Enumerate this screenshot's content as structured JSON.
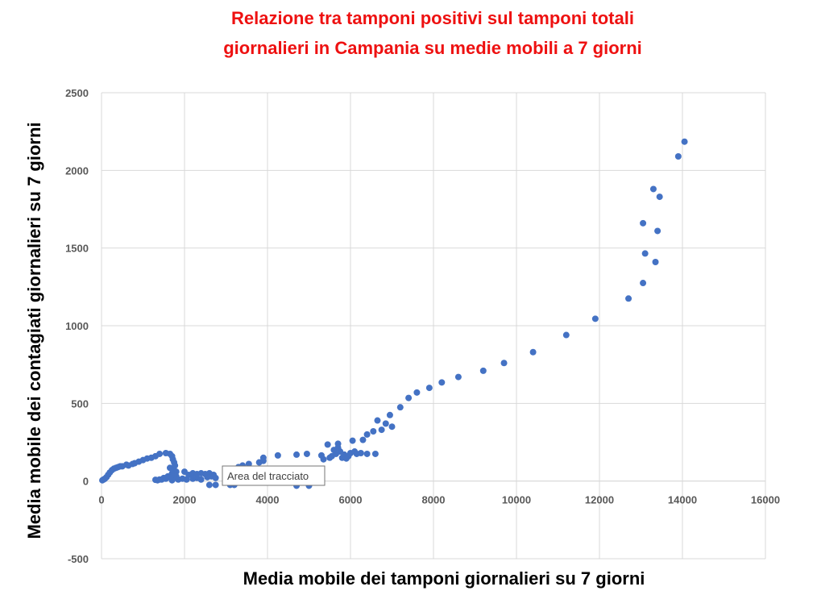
{
  "chart_data": {
    "type": "scatter",
    "title_line1": "Relazione tra tamponi positivi sul tamponi totali",
    "title_line2": "giornalieri in Campania su medie mobili a 7 giorni",
    "xlabel": "Media mobile dei tamponi giornalieri su 7 giorni",
    "ylabel": "Media mobile dei contagiati giornalieri su 7 giorni",
    "xlim": [
      0,
      16000
    ],
    "ylim": [
      -500,
      2500
    ],
    "x_ticks": [
      0,
      2000,
      4000,
      6000,
      8000,
      10000,
      12000,
      14000,
      16000
    ],
    "y_ticks": [
      -500,
      0,
      500,
      1000,
      1500,
      2000,
      2500
    ],
    "grid": true,
    "marker_color": "#4472c4",
    "tooltip": "Area del tracciato",
    "points": [
      [
        20,
        5
      ],
      [
        50,
        10
      ],
      [
        80,
        15
      ],
      [
        120,
        25
      ],
      [
        160,
        40
      ],
      [
        200,
        55
      ],
      [
        250,
        70
      ],
      [
        300,
        80
      ],
      [
        350,
        85
      ],
      [
        400,
        90
      ],
      [
        450,
        95
      ],
      [
        500,
        95
      ],
      [
        600,
        105
      ],
      [
        650,
        100
      ],
      [
        750,
        110
      ],
      [
        800,
        115
      ],
      [
        900,
        125
      ],
      [
        1000,
        135
      ],
      [
        1100,
        145
      ],
      [
        1200,
        150
      ],
      [
        1300,
        160
      ],
      [
        1400,
        175
      ],
      [
        1550,
        180
      ],
      [
        1650,
        175
      ],
      [
        1700,
        160
      ],
      [
        1720,
        140
      ],
      [
        1750,
        120
      ],
      [
        1770,
        100
      ],
      [
        1650,
        85
      ],
      [
        1750,
        70
      ],
      [
        1800,
        60
      ],
      [
        1700,
        50
      ],
      [
        1750,
        40
      ],
      [
        1800,
        30
      ],
      [
        1750,
        20
      ],
      [
        1650,
        25
      ],
      [
        1550,
        15
      ],
      [
        1500,
        20
      ],
      [
        1450,
        10
      ],
      [
        1400,
        10
      ],
      [
        1350,
        5
      ],
      [
        1300,
        8
      ],
      [
        1600,
        30
      ],
      [
        1700,
        5
      ],
      [
        1850,
        10
      ],
      [
        1950,
        15
      ],
      [
        2050,
        10
      ],
      [
        2000,
        60
      ],
      [
        2100,
        40
      ],
      [
        2200,
        50
      ],
      [
        2300,
        45
      ],
      [
        2400,
        50
      ],
      [
        2500,
        45
      ],
      [
        2600,
        50
      ],
      [
        2700,
        40
      ],
      [
        2200,
        15
      ],
      [
        2300,
        20
      ],
      [
        2400,
        10
      ],
      [
        2550,
        25
      ],
      [
        2650,
        30
      ],
      [
        2750,
        20
      ],
      [
        2600,
        -25
      ],
      [
        2750,
        -25
      ],
      [
        3100,
        -25
      ],
      [
        3200,
        -25
      ],
      [
        3100,
        -10
      ],
      [
        3300,
        90
      ],
      [
        3400,
        100
      ],
      [
        3550,
        110
      ],
      [
        3800,
        120
      ],
      [
        3900,
        130
      ],
      [
        3900,
        150
      ],
      [
        4250,
        165
      ],
      [
        4700,
        170
      ],
      [
        4950,
        175
      ],
      [
        4700,
        -30
      ],
      [
        5000,
        -30
      ],
      [
        5300,
        165
      ],
      [
        5350,
        140
      ],
      [
        5450,
        235
      ],
      [
        5500,
        150
      ],
      [
        5550,
        160
      ],
      [
        5600,
        200
      ],
      [
        5650,
        175
      ],
      [
        5700,
        215
      ],
      [
        5700,
        240
      ],
      [
        5750,
        190
      ],
      [
        5800,
        150
      ],
      [
        5850,
        170
      ],
      [
        5900,
        145
      ],
      [
        5950,
        160
      ],
      [
        6000,
        180
      ],
      [
        6050,
        260
      ],
      [
        6100,
        190
      ],
      [
        6150,
        175
      ],
      [
        6300,
        265
      ],
      [
        6250,
        180
      ],
      [
        6400,
        175
      ],
      [
        6400,
        300
      ],
      [
        6600,
        175
      ],
      [
        6550,
        320
      ],
      [
        6650,
        390
      ],
      [
        6750,
        330
      ],
      [
        6850,
        370
      ],
      [
        6950,
        425
      ],
      [
        7000,
        350
      ],
      [
        7200,
        475
      ],
      [
        7400,
        535
      ],
      [
        7600,
        570
      ],
      [
        7900,
        600
      ],
      [
        8200,
        635
      ],
      [
        8600,
        670
      ],
      [
        9200,
        710
      ],
      [
        9700,
        760
      ],
      [
        10400,
        830
      ],
      [
        11200,
        940
      ],
      [
        11900,
        1045
      ],
      [
        12700,
        1175
      ],
      [
        13050,
        1275
      ],
      [
        13050,
        1660
      ],
      [
        13100,
        1465
      ],
      [
        13300,
        1880
      ],
      [
        13350,
        1410
      ],
      [
        13400,
        1610
      ],
      [
        13450,
        1830
      ],
      [
        13900,
        2090
      ],
      [
        14050,
        2185
      ]
    ]
  }
}
